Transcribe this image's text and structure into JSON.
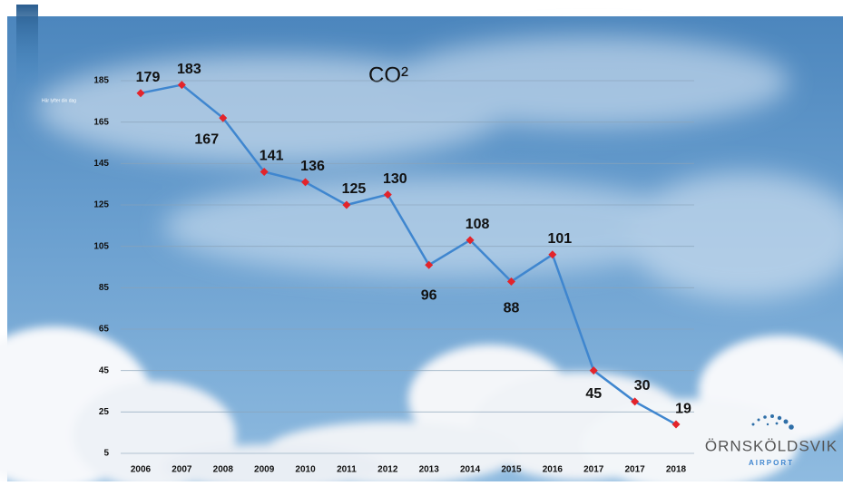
{
  "chart_data": {
    "type": "line",
    "title": "CO²",
    "categories": [
      "2006",
      "2007",
      "2008",
      "2009",
      "2010",
      "2011",
      "2012",
      "2013",
      "2014",
      "2015",
      "2016",
      "2017",
      "2017",
      "2018"
    ],
    "values": [
      179,
      183,
      167,
      141,
      136,
      125,
      130,
      96,
      108,
      88,
      101,
      45,
      30,
      19
    ],
    "color": "#3f86cf",
    "marker_color": "#e3242b",
    "ylim": [
      5,
      185
    ],
    "yticks": [
      5,
      25,
      45,
      65,
      85,
      105,
      125,
      145,
      165,
      185
    ],
    "grid": true
  },
  "branding": {
    "tagline": "Här lyfter din dag",
    "name": "ÖRNSKÖLDSVIK",
    "subname": "AIRPORT"
  }
}
